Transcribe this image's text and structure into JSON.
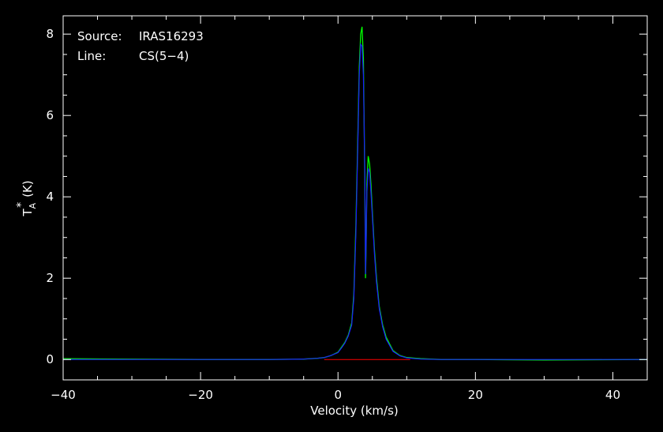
{
  "annotations": [
    {
      "key": "Source:",
      "value": "IRAS16293"
    },
    {
      "key": "Line:",
      "value": "CS(5−4)"
    }
  ],
  "chart_data": {
    "type": "line",
    "xlabel": "Velocity (km/s)",
    "ylabel_main": "T",
    "ylabel_sup": "*",
    "ylabel_sub": "A",
    "ylabel_unit": "(K)",
    "xlim": [
      -40,
      45
    ],
    "ylim": [
      -0.5,
      8.45
    ],
    "grid": false,
    "x_ticks": [
      -40,
      -20,
      0,
      20,
      40
    ],
    "x_tick_labels": [
      "−40",
      "−20",
      "0",
      "20",
      "40"
    ],
    "y_ticks": [
      0,
      2,
      4,
      6,
      8
    ],
    "y_tick_labels": [
      "0",
      "2",
      "4",
      "6",
      "8"
    ],
    "colors": {
      "observed": "#00ff00",
      "model": "#1a1aff",
      "baseline": "#ff0000",
      "axes": "#ffffff",
      "background": "#000000"
    },
    "series": [
      {
        "x": [
          -40,
          -20,
          -10,
          -5,
          -3,
          -2,
          -1,
          0,
          0.5,
          1,
          1.5,
          2,
          2.3,
          2.6,
          2.9,
          3.1,
          3.3,
          3.5,
          3.7,
          3.9,
          4.0,
          4.1,
          4.2,
          4.4,
          4.6,
          4.8,
          5.0,
          5.3,
          5.6,
          6.0,
          6.5,
          7,
          8,
          9,
          10,
          12,
          15,
          20,
          30,
          45
        ],
        "values": [
          0.02,
          0.0,
          0.0,
          0.01,
          0.03,
          0.05,
          0.1,
          0.18,
          0.3,
          0.42,
          0.6,
          0.9,
          1.6,
          3.3,
          5.6,
          7.2,
          8.0,
          8.18,
          7.4,
          4.4,
          2.0,
          2.8,
          4.3,
          5.0,
          4.8,
          4.3,
          3.6,
          2.7,
          2.0,
          1.3,
          0.85,
          0.55,
          0.22,
          0.1,
          0.05,
          0.02,
          0.0,
          0.0,
          -0.01,
          0.0
        ]
      },
      {
        "x": [
          -40,
          -20,
          -10,
          -5,
          -3,
          -2,
          -1,
          0,
          0.5,
          1,
          1.5,
          2,
          2.3,
          2.6,
          2.9,
          3.1,
          3.3,
          3.5,
          3.7,
          3.9,
          4.0,
          4.1,
          4.2,
          4.4,
          4.6,
          4.8,
          5.0,
          5.3,
          5.6,
          6.0,
          6.5,
          7,
          8,
          9,
          10,
          12,
          15,
          20,
          30,
          45
        ],
        "values": [
          0.0,
          0.0,
          0.0,
          0.01,
          0.03,
          0.05,
          0.1,
          0.17,
          0.28,
          0.4,
          0.58,
          0.85,
          1.5,
          3.1,
          5.4,
          7.0,
          7.75,
          7.7,
          7.0,
          4.6,
          2.1,
          2.9,
          4.1,
          4.7,
          4.6,
          4.1,
          3.5,
          2.6,
          1.9,
          1.25,
          0.8,
          0.5,
          0.2,
          0.09,
          0.04,
          0.01,
          0.0,
          0.0,
          0.0,
          0.0
        ]
      }
    ],
    "baseline": {
      "x": [
        -2,
        10.5
      ],
      "values": [
        0,
        0
      ]
    }
  }
}
